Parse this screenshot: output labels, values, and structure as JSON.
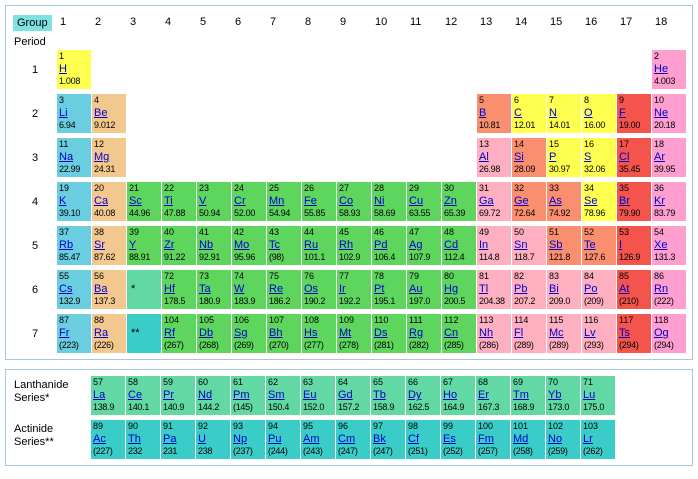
{
  "labels": {
    "group": "Group",
    "period": "Period",
    "lanthanide_series": "Lanthanide Series*",
    "actinide_series": "Actinide Series**"
  },
  "group_numbers": [
    "1",
    "2",
    "3",
    "4",
    "5",
    "6",
    "7",
    "8",
    "9",
    "10",
    "11",
    "12",
    "13",
    "14",
    "15",
    "16",
    "17",
    "18"
  ],
  "period_numbers": [
    "1",
    "2",
    "3",
    "4",
    "5",
    "6",
    "7"
  ],
  "colors": {
    "nonmetal": "#ffff4f",
    "noble": "#ff9fd0",
    "alkali": "#6acde0",
    "alkaline": "#f3c88e",
    "transition": "#5ed65e",
    "post": "#ffb0c0",
    "metalloid": "#fa8f70",
    "halogen": "#f4544c",
    "lanthanide": "#62d9a4",
    "actinide": "#3accc6",
    "group_box": "#7fe2e2",
    "box_border": "#a6c8dc",
    "link": "#0000cc"
  },
  "elements": [
    {
      "n": "1",
      "sym": "H",
      "mass": "1.008",
      "cat": "nonmetal",
      "period": 1,
      "group": 1
    },
    {
      "n": "2",
      "sym": "He",
      "mass": "4.003",
      "cat": "noble",
      "period": 1,
      "group": 18
    },
    {
      "n": "3",
      "sym": "Li",
      "mass": "6.94",
      "cat": "alkali",
      "period": 2,
      "group": 1
    },
    {
      "n": "4",
      "sym": "Be",
      "mass": "9.012",
      "cat": "alkaline",
      "period": 2,
      "group": 2
    },
    {
      "n": "5",
      "sym": "B",
      "mass": "10.81",
      "cat": "metalloid",
      "period": 2,
      "group": 13
    },
    {
      "n": "6",
      "sym": "C",
      "mass": "12.01",
      "cat": "nonmetal",
      "period": 2,
      "group": 14
    },
    {
      "n": "7",
      "sym": "N",
      "mass": "14.01",
      "cat": "nonmetal",
      "period": 2,
      "group": 15
    },
    {
      "n": "8",
      "sym": "O",
      "mass": "16.00",
      "cat": "nonmetal",
      "period": 2,
      "group": 16
    },
    {
      "n": "9",
      "sym": "F",
      "mass": "19.00",
      "cat": "halogen",
      "period": 2,
      "group": 17
    },
    {
      "n": "10",
      "sym": "Ne",
      "mass": "20.18",
      "cat": "noble",
      "period": 2,
      "group": 18
    },
    {
      "n": "11",
      "sym": "Na",
      "mass": "22.99",
      "cat": "alkali",
      "period": 3,
      "group": 1
    },
    {
      "n": "12",
      "sym": "Mg",
      "mass": "24.31",
      "cat": "alkaline",
      "period": 3,
      "group": 2
    },
    {
      "n": "13",
      "sym": "Al",
      "mass": "26.98",
      "cat": "post",
      "period": 3,
      "group": 13
    },
    {
      "n": "14",
      "sym": "Si",
      "mass": "28.09",
      "cat": "metalloid",
      "period": 3,
      "group": 14
    },
    {
      "n": "15",
      "sym": "P",
      "mass": "30.97",
      "cat": "nonmetal",
      "period": 3,
      "group": 15
    },
    {
      "n": "16",
      "sym": "S",
      "mass": "32.06",
      "cat": "nonmetal",
      "period": 3,
      "group": 16
    },
    {
      "n": "17",
      "sym": "Cl",
      "mass": "35.45",
      "cat": "halogen",
      "period": 3,
      "group": 17
    },
    {
      "n": "18",
      "sym": "Ar",
      "mass": "39.95",
      "cat": "noble",
      "period": 3,
      "group": 18
    },
    {
      "n": "19",
      "sym": "K",
      "mass": "39.10",
      "cat": "alkali",
      "period": 4,
      "group": 1
    },
    {
      "n": "20",
      "sym": "Ca",
      "mass": "40.08",
      "cat": "alkaline",
      "period": 4,
      "group": 2
    },
    {
      "n": "21",
      "sym": "Sc",
      "mass": "44.96",
      "cat": "transition",
      "period": 4,
      "group": 3
    },
    {
      "n": "22",
      "sym": "Ti",
      "mass": "47.88",
      "cat": "transition",
      "period": 4,
      "group": 4
    },
    {
      "n": "23",
      "sym": "V",
      "mass": "50.94",
      "cat": "transition",
      "period": 4,
      "group": 5
    },
    {
      "n": "24",
      "sym": "Cr",
      "mass": "52.00",
      "cat": "transition",
      "period": 4,
      "group": 6
    },
    {
      "n": "25",
      "sym": "Mn",
      "mass": "54.94",
      "cat": "transition",
      "period": 4,
      "group": 7
    },
    {
      "n": "26",
      "sym": "Fe",
      "mass": "55.85",
      "cat": "transition",
      "period": 4,
      "group": 8
    },
    {
      "n": "27",
      "sym": "Co",
      "mass": "58.93",
      "cat": "transition",
      "period": 4,
      "group": 9
    },
    {
      "n": "28",
      "sym": "Ni",
      "mass": "58.69",
      "cat": "transition",
      "period": 4,
      "group": 10
    },
    {
      "n": "29",
      "sym": "Cu",
      "mass": "63.55",
      "cat": "transition",
      "period": 4,
      "group": 11
    },
    {
      "n": "30",
      "sym": "Zn",
      "mass": "65.39",
      "cat": "transition",
      "period": 4,
      "group": 12
    },
    {
      "n": "31",
      "sym": "Ga",
      "mass": "69.72",
      "cat": "post",
      "period": 4,
      "group": 13
    },
    {
      "n": "32",
      "sym": "Ge",
      "mass": "72.64",
      "cat": "metalloid",
      "period": 4,
      "group": 14
    },
    {
      "n": "33",
      "sym": "As",
      "mass": "74.92",
      "cat": "metalloid",
      "period": 4,
      "group": 15
    },
    {
      "n": "34",
      "sym": "Se",
      "mass": "78.96",
      "cat": "nonmetal",
      "period": 4,
      "group": 16
    },
    {
      "n": "35",
      "sym": "Br",
      "mass": "79.90",
      "cat": "halogen",
      "period": 4,
      "group": 17
    },
    {
      "n": "36",
      "sym": "Kr",
      "mass": "83.79",
      "cat": "noble",
      "period": 4,
      "group": 18
    },
    {
      "n": "37",
      "sym": "Rb",
      "mass": "85.47",
      "cat": "alkali",
      "period": 5,
      "group": 1
    },
    {
      "n": "38",
      "sym": "Sr",
      "mass": "87.62",
      "cat": "alkaline",
      "period": 5,
      "group": 2
    },
    {
      "n": "39",
      "sym": "Y",
      "mass": "88.91",
      "cat": "transition",
      "period": 5,
      "group": 3
    },
    {
      "n": "40",
      "sym": "Zr",
      "mass": "91.22",
      "cat": "transition",
      "period": 5,
      "group": 4
    },
    {
      "n": "41",
      "sym": "Nb",
      "mass": "92.91",
      "cat": "transition",
      "period": 5,
      "group": 5
    },
    {
      "n": "42",
      "sym": "Mo",
      "mass": "95.96",
      "cat": "transition",
      "period": 5,
      "group": 6
    },
    {
      "n": "43",
      "sym": "Tc",
      "mass": "(98)",
      "cat": "transition",
      "period": 5,
      "group": 7
    },
    {
      "n": "44",
      "sym": "Ru",
      "mass": "101.1",
      "cat": "transition",
      "period": 5,
      "group": 8
    },
    {
      "n": "45",
      "sym": "Rh",
      "mass": "102.9",
      "cat": "transition",
      "period": 5,
      "group": 9
    },
    {
      "n": "46",
      "sym": "Pd",
      "mass": "106.4",
      "cat": "transition",
      "period": 5,
      "group": 10
    },
    {
      "n": "47",
      "sym": "Ag",
      "mass": "107.9",
      "cat": "transition",
      "period": 5,
      "group": 11
    },
    {
      "n": "48",
      "sym": "Cd",
      "mass": "112.4",
      "cat": "transition",
      "period": 5,
      "group": 12
    },
    {
      "n": "49",
      "sym": "In",
      "mass": "114.8",
      "cat": "post",
      "period": 5,
      "group": 13
    },
    {
      "n": "50",
      "sym": "Sn",
      "mass": "118.7",
      "cat": "post",
      "period": 5,
      "group": 14
    },
    {
      "n": "51",
      "sym": "Sb",
      "mass": "121.8",
      "cat": "metalloid",
      "period": 5,
      "group": 15
    },
    {
      "n": "52",
      "sym": "Te",
      "mass": "127.6",
      "cat": "metalloid",
      "period": 5,
      "group": 16
    },
    {
      "n": "53",
      "sym": "I",
      "mass": "126.9",
      "cat": "halogen",
      "period": 5,
      "group": 17
    },
    {
      "n": "54",
      "sym": "Xe",
      "mass": "131.3",
      "cat": "noble",
      "period": 5,
      "group": 18
    },
    {
      "n": "55",
      "sym": "Cs",
      "mass": "132.9",
      "cat": "alkali",
      "period": 6,
      "group": 1
    },
    {
      "n": "56",
      "sym": "Ba",
      "mass": "137.3",
      "cat": "alkaline",
      "period": 6,
      "group": 2
    },
    {
      "n": "72",
      "sym": "Hf",
      "mass": "178.5",
      "cat": "transition",
      "period": 6,
      "group": 4
    },
    {
      "n": "73",
      "sym": "Ta",
      "mass": "180.9",
      "cat": "transition",
      "period": 6,
      "group": 5
    },
    {
      "n": "74",
      "sym": "W",
      "mass": "183.9",
      "cat": "transition",
      "period": 6,
      "group": 6
    },
    {
      "n": "75",
      "sym": "Re",
      "mass": "186.2",
      "cat": "transition",
      "period": 6,
      "group": 7
    },
    {
      "n": "76",
      "sym": "Os",
      "mass": "190.2",
      "cat": "transition",
      "period": 6,
      "group": 8
    },
    {
      "n": "77",
      "sym": "Ir",
      "mass": "192.2",
      "cat": "transition",
      "period": 6,
      "group": 9
    },
    {
      "n": "78",
      "sym": "Pt",
      "mass": "195.1",
      "cat": "transition",
      "period": 6,
      "group": 10
    },
    {
      "n": "79",
      "sym": "Au",
      "mass": "197.0",
      "cat": "transition",
      "period": 6,
      "group": 11
    },
    {
      "n": "80",
      "sym": "Hg",
      "mass": "200.5",
      "cat": "transition",
      "period": 6,
      "group": 12
    },
    {
      "n": "81",
      "sym": "Tl",
      "mass": "204.38",
      "cat": "post",
      "period": 6,
      "group": 13
    },
    {
      "n": "82",
      "sym": "Pb",
      "mass": "207.2",
      "cat": "post",
      "period": 6,
      "group": 14
    },
    {
      "n": "83",
      "sym": "Bi",
      "mass": "209.0",
      "cat": "post",
      "period": 6,
      "group": 15
    },
    {
      "n": "84",
      "sym": "Po",
      "mass": "(209)",
      "cat": "post",
      "period": 6,
      "group": 16
    },
    {
      "n": "85",
      "sym": "At",
      "mass": "(210)",
      "cat": "halogen",
      "period": 6,
      "group": 17
    },
    {
      "n": "86",
      "sym": "Rn",
      "mass": "(222)",
      "cat": "noble",
      "period": 6,
      "group": 18
    },
    {
      "n": "87",
      "sym": "Fr",
      "mass": "(223)",
      "cat": "alkali",
      "period": 7,
      "group": 1
    },
    {
      "n": "88",
      "sym": "Ra",
      "mass": "(226)",
      "cat": "alkaline",
      "period": 7,
      "group": 2
    },
    {
      "n": "104",
      "sym": "Rf",
      "mass": "(267)",
      "cat": "transition",
      "period": 7,
      "group": 4
    },
    {
      "n": "105",
      "sym": "Db",
      "mass": "(268)",
      "cat": "transition",
      "period": 7,
      "group": 5
    },
    {
      "n": "106",
      "sym": "Sg",
      "mass": "(269)",
      "cat": "transition",
      "period": 7,
      "group": 6
    },
    {
      "n": "107",
      "sym": "Bh",
      "mass": "(270)",
      "cat": "transition",
      "period": 7,
      "group": 7
    },
    {
      "n": "108",
      "sym": "Hs",
      "mass": "(277)",
      "cat": "transition",
      "period": 7,
      "group": 8
    },
    {
      "n": "109",
      "sym": "Mt",
      "mass": "(278)",
      "cat": "transition",
      "period": 7,
      "group": 9
    },
    {
      "n": "110",
      "sym": "Ds",
      "mass": "(281)",
      "cat": "transition",
      "period": 7,
      "group": 10
    },
    {
      "n": "111",
      "sym": "Rg",
      "mass": "(282)",
      "cat": "transition",
      "period": 7,
      "group": 11
    },
    {
      "n": "112",
      "sym": "Cn",
      "mass": "(285)",
      "cat": "transition",
      "period": 7,
      "group": 12
    },
    {
      "n": "113",
      "sym": "Nh",
      "mass": "(286)",
      "cat": "post",
      "period": 7,
      "group": 13
    },
    {
      "n": "114",
      "sym": "Fl",
      "mass": "(289)",
      "cat": "post",
      "period": 7,
      "group": 14
    },
    {
      "n": "115",
      "sym": "Mc",
      "mass": "(289)",
      "cat": "post",
      "period": 7,
      "group": 15
    },
    {
      "n": "116",
      "sym": "Lv",
      "mass": "(293)",
      "cat": "post",
      "period": 7,
      "group": 16
    },
    {
      "n": "117",
      "sym": "Ts",
      "mass": "(294)",
      "cat": "halogen",
      "period": 7,
      "group": 17
    },
    {
      "n": "118",
      "sym": "Og",
      "mass": "(294)",
      "cat": "noble",
      "period": 7,
      "group": 18
    }
  ],
  "placeholders": [
    {
      "period": 6,
      "group": 3,
      "text": "*",
      "cat": "lanthanide"
    },
    {
      "period": 7,
      "group": 3,
      "text": "**",
      "cat": "actinide"
    }
  ],
  "lanthanides": [
    {
      "n": "57",
      "sym": "La",
      "mass": "138.9"
    },
    {
      "n": "58",
      "sym": "Ce",
      "mass": "140.1"
    },
    {
      "n": "59",
      "sym": "Pr",
      "mass": "140.9"
    },
    {
      "n": "60",
      "sym": "Nd",
      "mass": "144.2"
    },
    {
      "n": "61",
      "sym": "Pm",
      "mass": "(145)"
    },
    {
      "n": "62",
      "sym": "Sm",
      "mass": "150.4"
    },
    {
      "n": "63",
      "sym": "Eu",
      "mass": "152.0"
    },
    {
      "n": "64",
      "sym": "Gd",
      "mass": "157.2"
    },
    {
      "n": "65",
      "sym": "Tb",
      "mass": "158.9"
    },
    {
      "n": "66",
      "sym": "Dy",
      "mass": "162.5"
    },
    {
      "n": "67",
      "sym": "Ho",
      "mass": "164.9"
    },
    {
      "n": "68",
      "sym": "Er",
      "mass": "167.3"
    },
    {
      "n": "69",
      "sym": "Tm",
      "mass": "168.9"
    },
    {
      "n": "70",
      "sym": "Yb",
      "mass": "173.0"
    },
    {
      "n": "71",
      "sym": "Lu",
      "mass": "175.0"
    }
  ],
  "actinides": [
    {
      "n": "89",
      "sym": "Ac",
      "mass": "(227)"
    },
    {
      "n": "90",
      "sym": "Th",
      "mass": "232"
    },
    {
      "n": "91",
      "sym": "Pa",
      "mass": "231"
    },
    {
      "n": "92",
      "sym": "U",
      "mass": "238"
    },
    {
      "n": "93",
      "sym": "Np",
      "mass": "(237)"
    },
    {
      "n": "94",
      "sym": "Pu",
      "mass": "(244)"
    },
    {
      "n": "95",
      "sym": "Am",
      "mass": "(243)"
    },
    {
      "n": "96",
      "sym": "Cm",
      "mass": "(247)"
    },
    {
      "n": "97",
      "sym": "Bk",
      "mass": "(247)"
    },
    {
      "n": "98",
      "sym": "Cf",
      "mass": "(251)"
    },
    {
      "n": "99",
      "sym": "Es",
      "mass": "(252)"
    },
    {
      "n": "100",
      "sym": "Fm",
      "mass": "(257)"
    },
    {
      "n": "101",
      "sym": "Md",
      "mass": "(258)"
    },
    {
      "n": "102",
      "sym": "No",
      "mass": "(259)"
    },
    {
      "n": "103",
      "sym": "Lr",
      "mass": "(262)"
    }
  ]
}
